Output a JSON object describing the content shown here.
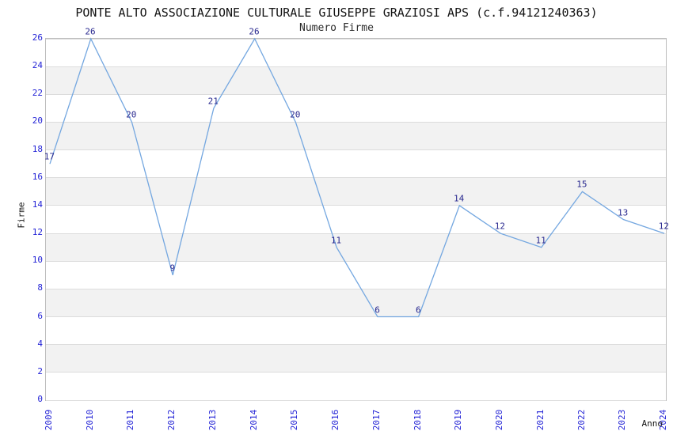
{
  "chart_data": {
    "type": "line",
    "title": "PONTE ALTO ASSOCIAZIONE CULTURALE GIUSEPPE GRAZIOSI APS (c.f.94121240363)",
    "subtitle": "Numero Firme",
    "xlabel": "Anno",
    "ylabel": "Firme",
    "categories": [
      "2009",
      "2010",
      "2011",
      "2012",
      "2013",
      "2014",
      "2015",
      "2016",
      "2017",
      "2018",
      "2019",
      "2020",
      "2021",
      "2022",
      "2023",
      "2024"
    ],
    "values": [
      17,
      26,
      20,
      9,
      21,
      26,
      20,
      11,
      6,
      6,
      14,
      12,
      11,
      15,
      13,
      12
    ],
    "yticks": [
      0,
      2,
      4,
      6,
      8,
      10,
      12,
      14,
      16,
      18,
      20,
      22,
      24,
      26
    ],
    "ylim": [
      0,
      26
    ],
    "grid": true,
    "legend": "none",
    "band_pattern": "alternating horizontal stripes every 2 units, gray on [2-4],[6-8],[10-12],[14-16],[18-20],[22-24]",
    "colors": {
      "line": "#74a7e0",
      "data_label": "#28288f",
      "tick_label": "#2323d6",
      "band": "#f2f2f2",
      "gridline": "#dcdcdc",
      "axis_border": "#bdbdbd",
      "title": "#141414"
    }
  }
}
